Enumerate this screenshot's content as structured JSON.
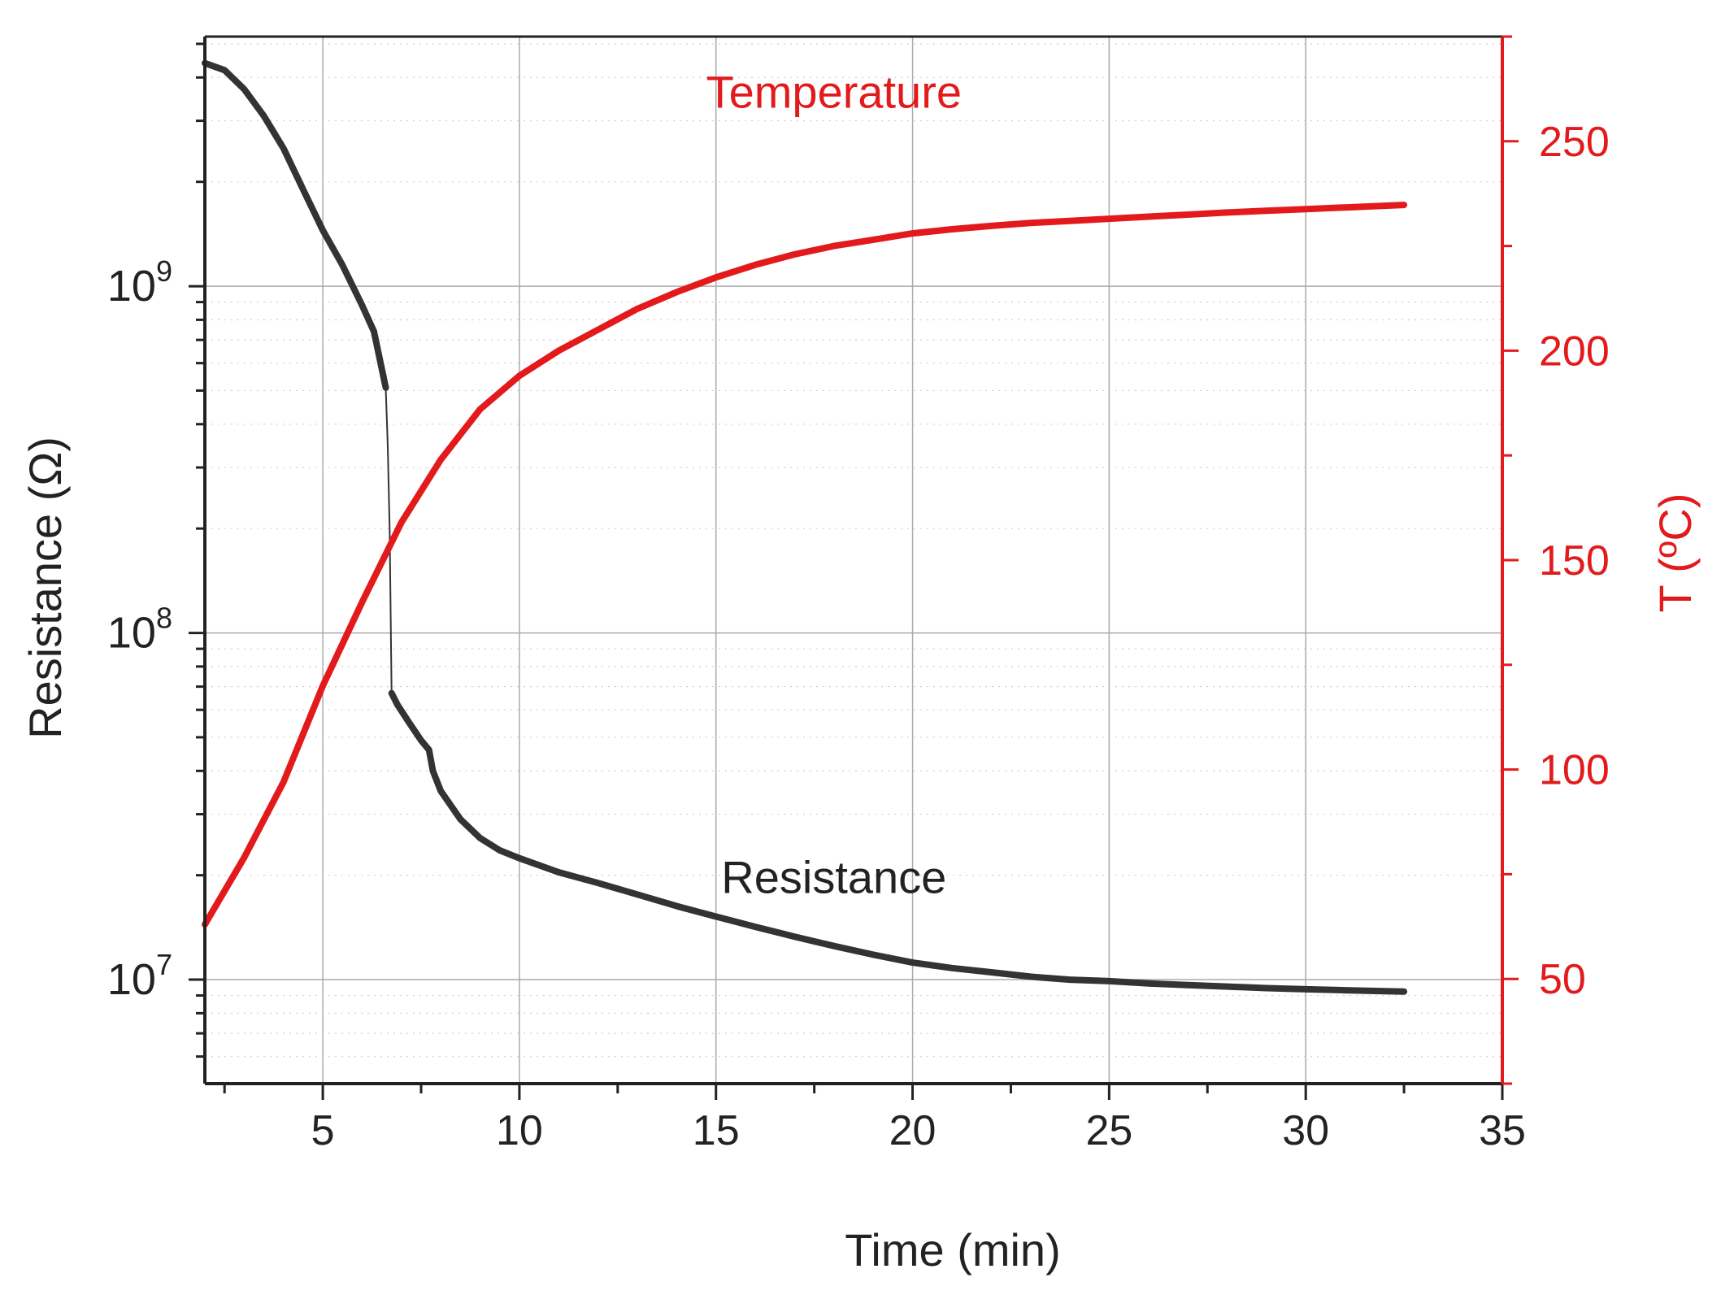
{
  "chart_data": {
    "type": "line",
    "title": "",
    "xlabel": "Time (min)",
    "ylabel": "Resistance (Ω)",
    "y2label": "T (ºC)",
    "xlim": [
      2,
      35
    ],
    "ylim_log10": [
      6.7,
      9.72
    ],
    "y2lim": [
      25,
      275
    ],
    "grid": true,
    "x_ticks": [
      5,
      10,
      15,
      20,
      25,
      30,
      35
    ],
    "x_tick_labels": [
      "5",
      "10",
      "15",
      "20",
      "25",
      "30",
      "35"
    ],
    "y_ticks_log10": [
      7,
      8,
      9
    ],
    "y_tick_labels": [
      {
        "base": "10",
        "exp": "7"
      },
      {
        "base": "10",
        "exp": "8"
      },
      {
        "base": "10",
        "exp": "9"
      }
    ],
    "y2_ticks": [
      50,
      100,
      150,
      200,
      250
    ],
    "y2_tick_labels": [
      "50",
      "100",
      "150",
      "200",
      "250"
    ],
    "colors": {
      "resistance": "#333333",
      "temperature": "#e31a1c",
      "axis_right": "#e31a1c",
      "grid": "#aaaaaa"
    },
    "annotations": [
      {
        "text": "Temperature",
        "series": "Temperature",
        "x": 18,
        "y2": 258
      },
      {
        "text": "Resistance",
        "series": "Resistance",
        "x": 18,
        "y": 17800000
      }
    ],
    "series": [
      {
        "name": "Resistance",
        "axis": "left",
        "scale": "log",
        "x": [
          2.0,
          2.5,
          3.0,
          3.5,
          4.0,
          4.5,
          5.0,
          5.5,
          6.0,
          6.3,
          6.6,
          6.65,
          6.7,
          6.75,
          6.9,
          7.2,
          7.5,
          7.7,
          7.8,
          8.0,
          8.5,
          9.0,
          9.5,
          10.0,
          11.0,
          12.0,
          13.0,
          14.0,
          15.0,
          16.0,
          17.0,
          18.0,
          19.0,
          20.0,
          21.0,
          22.0,
          23.0,
          24.0,
          25.0,
          26.0,
          27.0,
          28.0,
          29.0,
          30.0,
          31.0,
          32.0,
          32.5
        ],
        "values": [
          4400000000,
          4200000000,
          3700000000,
          3100000000,
          2500000000,
          1900000000,
          1450000000,
          1150000000,
          880000000,
          740000000,
          510000000,
          350000000,
          200000000,
          67000000,
          62000000,
          55000000,
          49000000,
          46000000,
          40000000,
          35000000,
          29000000,
          25600000,
          23600000,
          22400000,
          20400000,
          19000000,
          17600000,
          16300000,
          15200000,
          14200000,
          13300000,
          12500000,
          11800000,
          11200000,
          10800000,
          10500000,
          10200000,
          10000000,
          9900000,
          9750000,
          9650000,
          9550000,
          9450000,
          9380000,
          9320000,
          9260000,
          9240000
        ]
      },
      {
        "name": "Temperature",
        "axis": "right",
        "unit": "°C",
        "x": [
          2.0,
          3.0,
          4.0,
          5.0,
          6.0,
          7.0,
          8.0,
          9.0,
          10.0,
          11.0,
          12.0,
          13.0,
          14.0,
          15.0,
          16.0,
          17.0,
          18.0,
          19.0,
          20.0,
          21.0,
          22.0,
          23.0,
          24.0,
          25.0,
          26.0,
          27.0,
          28.0,
          29.0,
          30.0,
          31.0,
          32.0,
          32.5
        ],
        "values": [
          63,
          79,
          97,
          120,
          140,
          159,
          174,
          186,
          194,
          200,
          205,
          210,
          214,
          217.5,
          220.5,
          223,
          225,
          226.5,
          228,
          229,
          229.8,
          230.5,
          231,
          231.5,
          232,
          232.5,
          233,
          233.4,
          233.8,
          234.2,
          234.6,
          234.8
        ]
      }
    ]
  }
}
